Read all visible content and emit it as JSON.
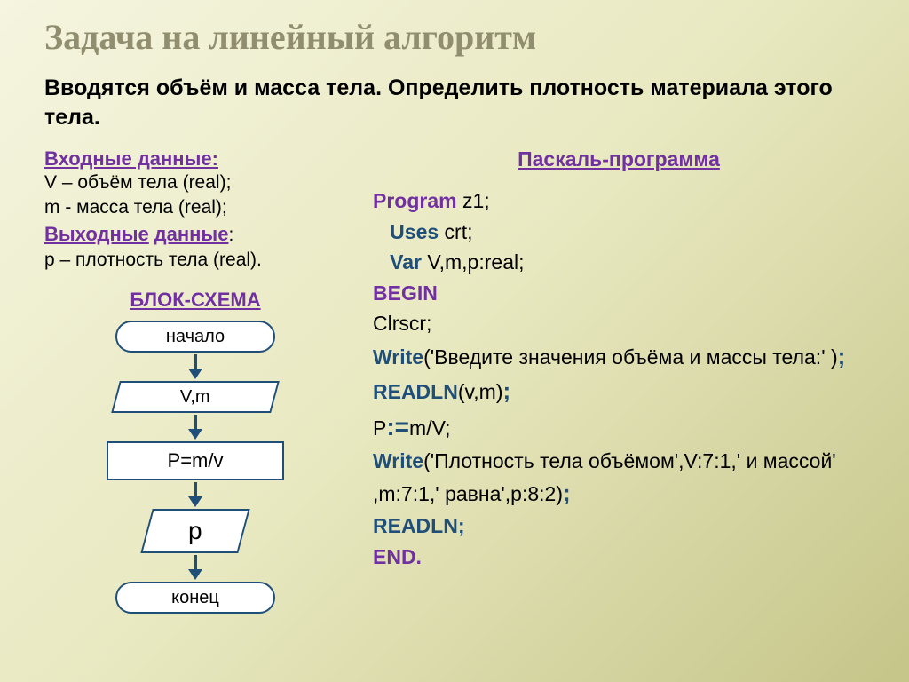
{
  "title": "Задача на линейный алгоритм",
  "subtitle": "Вводятся объём и масса тела. Определить плотность материала этого тела.",
  "input_data": {
    "header": "Входные данные:",
    "lines": [
      "V – объём тела (real);",
      "m -  масса тела (real);"
    ]
  },
  "output_data": {
    "header_parts": [
      "Выходные",
      " ",
      "данные",
      ":"
    ],
    "lines": [
      "p – плотность тела (real)."
    ]
  },
  "flowchart": {
    "title": "БЛОК-СХЕМА",
    "start": "начало",
    "input": "V,m",
    "process": "P=m/v",
    "output": "p",
    "end": "конец"
  },
  "pascal": {
    "title": "Паскаль-программа",
    "program": "Program",
    "program_name": "z1;",
    "uses": "Uses",
    "uses_val": "crt;",
    "var": "Var",
    "var_val": "V,m,p:real;",
    "begin": "BEGIN",
    "clrscr": "Clrscr;",
    "write1a": "Write",
    "write1b": "('Введите значения объёма и массы тела:' )",
    "readln1a": "READLN",
    "readln1b": "(v,m)",
    "assign_left": "P",
    "assign_right": "m/V;",
    "write2a": "Write",
    "write2b": "('Плотность тела объёмом',V:7:1,' и массой' ,m:7:1,' равна',p:8:2)",
    "readln2": "READLN;",
    "end": "END."
  },
  "colors": {
    "title": "#918e70",
    "accent": "#7030a0",
    "flowborder": "#1f4e79",
    "keyword_blue": "#1f4e79"
  }
}
